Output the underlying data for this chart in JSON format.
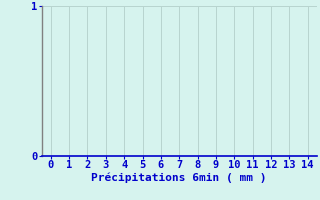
{
  "title": "",
  "xlabel": "Précipitations 6min ( mm )",
  "ylabel": "",
  "xlim": [
    -0.5,
    14.5
  ],
  "ylim": [
    0,
    1.0
  ],
  "xticks": [
    0,
    1,
    2,
    3,
    4,
    5,
    6,
    7,
    8,
    9,
    10,
    11,
    12,
    13,
    14
  ],
  "yticks": [
    0,
    1
  ],
  "ytick_labels": [
    "0",
    "1"
  ],
  "background_color": "#d6f3ee",
  "grid_color": "#b8d4cf",
  "axis_color": "#0000cc",
  "label_color": "#0000cc",
  "tick_color": "#0000cc",
  "left_spine_color": "#808080",
  "bottom_spine_color": "#0000cc",
  "xlabel_fontsize": 8,
  "tick_fontsize": 7.5
}
